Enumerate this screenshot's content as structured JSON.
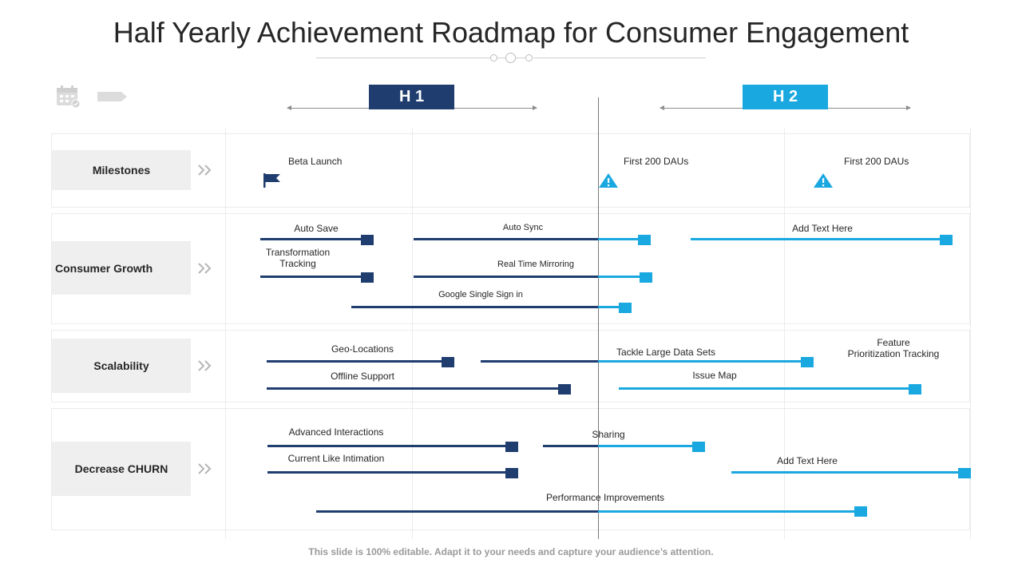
{
  "title": "Half Yearly Achievement  Roadmap for Consumer Engagement",
  "periods": {
    "h1": "H 1",
    "h2": "H 2"
  },
  "colors": {
    "h1": "#1f3d6e",
    "h2": "#1aa8e0",
    "label_bg": "#efefef"
  },
  "rows": {
    "milestones": {
      "label": "Milestones"
    },
    "growth": {
      "label": "Consumer Growth"
    },
    "scalability": {
      "label": "Scalability"
    },
    "churn": {
      "label": "Decrease CHURN"
    }
  },
  "milestones": {
    "beta_launch": "Beta Launch",
    "first_dau_1": "First 200 DAUs",
    "first_dau_2": "First 200 DAUs"
  },
  "tasks": {
    "auto_save": "Auto Save",
    "auto_sync": "Auto Sync",
    "add_text_1": "Add Text Here",
    "transformation_tracking": "Transformation\nTracking",
    "real_time_mirroring": "Real Time  Mirroring",
    "google_sso": "Google Single Sign in",
    "geo_locations": "Geo-Locations",
    "tackle_large_data": "Tackle Large Data Sets",
    "feature_prioritization": "Feature\nPrioritization Tracking",
    "offline_support": "Offline Support",
    "issue_map": "Issue Map",
    "advanced_interactions": "Advanced Interactions",
    "sharing": "Sharing",
    "current_like_intimation": "Current Like Intimation",
    "add_text_2": "Add Text Here",
    "performance_improvements": "Performance Improvements"
  },
  "footer": "This slide is 100% editable. Adapt it to your needs and capture your audience’s attention."
}
